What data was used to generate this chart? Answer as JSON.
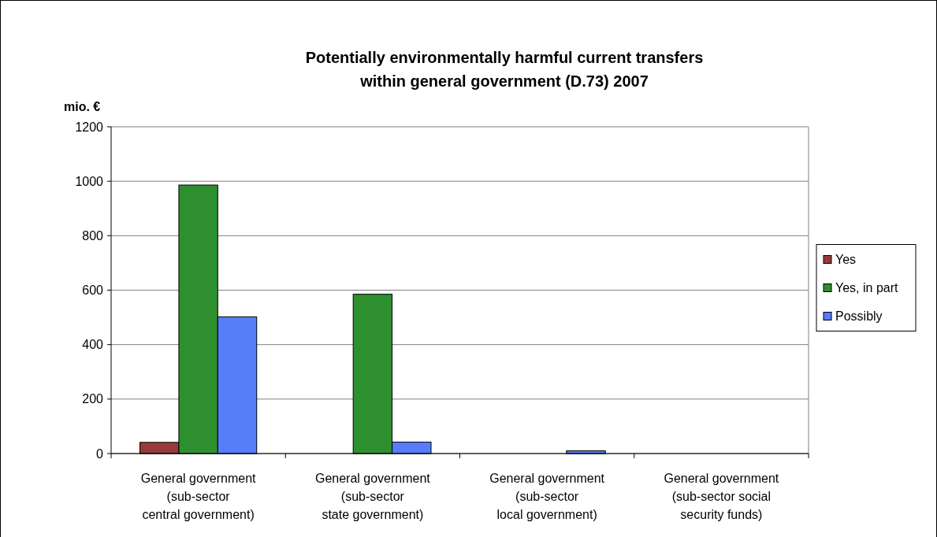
{
  "chart_data": {
    "type": "bar",
    "title": "Potentially environmentally harmful current transfers\nwithin general government (D.73) 2007",
    "ylabel": "mio. €",
    "categories": [
      "General government\n(sub-sector\ncentral government)",
      "General government\n(sub-sector\nstate government)",
      "General government\n(sub-sector\nlocal government)",
      "General government\n(sub-sector social\nsecurity funds)"
    ],
    "series": [
      {
        "name": "Yes",
        "color": "#973a3a",
        "values": [
          41,
          0,
          0,
          0
        ]
      },
      {
        "name": "Yes, in part",
        "color": "#2e8f2e",
        "values": [
          986,
          585,
          0,
          0
        ]
      },
      {
        "name": "Possibly",
        "color": "#587dfb",
        "values": [
          502,
          42,
          10,
          0
        ]
      }
    ],
    "ylim": [
      0,
      1200
    ],
    "yticks": [
      0,
      200,
      400,
      600,
      800,
      1000,
      1200
    ],
    "grid": "y",
    "legend": "right"
  }
}
